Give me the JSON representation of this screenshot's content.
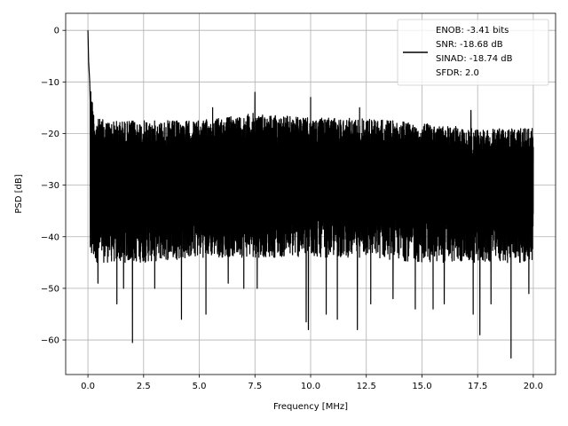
{
  "chart_data": {
    "type": "line",
    "title": "",
    "xlabel": "Frequency [MHz]",
    "ylabel": "PSD [dB]",
    "xlim": [
      -1.0,
      21.0
    ],
    "ylim": [
      -66.7,
      3.3
    ],
    "xticks": [
      0.0,
      2.5,
      5.0,
      7.5,
      10.0,
      12.5,
      15.0,
      17.5,
      20.0
    ],
    "xtick_labels": [
      "0.0",
      "2.5",
      "5.0",
      "7.5",
      "10.0",
      "12.5",
      "15.0",
      "17.5",
      "20.0"
    ],
    "yticks": [
      0,
      -10,
      -20,
      -30,
      -40,
      -50,
      -60
    ],
    "ytick_labels": [
      "0",
      "−10",
      "−20",
      "−30",
      "−40",
      "−50",
      "−60"
    ],
    "grid": true,
    "legend_position": "top-right",
    "legend": {
      "lines": [
        "ENOB: -3.41 bits",
        "SNR: -18.68 dB",
        "SINAD: -18.74 dB",
        "SFDR: 2.0"
      ]
    },
    "series": [
      {
        "color": "#000000",
        "x_range": [
          0.0,
          20.0
        ],
        "noise_floor_band_db": [
          -45,
          -16
        ],
        "upper_envelope": [
          [
            0.05,
            -8
          ],
          [
            0.3,
            -17
          ],
          [
            1.0,
            -17.5
          ],
          [
            3.0,
            -17.5
          ],
          [
            5.0,
            -17.5
          ],
          [
            7.5,
            -16
          ],
          [
            10.0,
            -17
          ],
          [
            12.5,
            -17
          ],
          [
            15.0,
            -18
          ],
          [
            17.5,
            -19
          ],
          [
            20.0,
            -19
          ]
        ],
        "lower_envelope": [
          [
            0.3,
            -45
          ],
          [
            2.5,
            -45
          ],
          [
            5.0,
            -44
          ],
          [
            7.5,
            -44
          ],
          [
            10.0,
            -44
          ],
          [
            12.5,
            -44
          ],
          [
            15.0,
            -45
          ],
          [
            17.5,
            -45
          ],
          [
            20.0,
            -45
          ]
        ],
        "peaks": [
          {
            "x": 0.0,
            "y": 0.0
          },
          {
            "x": 0.03,
            "y": -6
          },
          {
            "x": 0.08,
            "y": -10
          },
          {
            "x": 7.5,
            "y": -12
          },
          {
            "x": 10.0,
            "y": -13
          },
          {
            "x": 5.6,
            "y": -15
          },
          {
            "x": 12.2,
            "y": -15
          },
          {
            "x": 17.2,
            "y": -15.5
          }
        ],
        "dips": [
          {
            "x": 0.45,
            "y": -49
          },
          {
            "x": 1.3,
            "y": -53
          },
          {
            "x": 1.6,
            "y": -50
          },
          {
            "x": 2.0,
            "y": -60.5
          },
          {
            "x": 3.0,
            "y": -50
          },
          {
            "x": 4.2,
            "y": -56
          },
          {
            "x": 5.3,
            "y": -55
          },
          {
            "x": 6.3,
            "y": -49
          },
          {
            "x": 7.0,
            "y": -50
          },
          {
            "x": 7.6,
            "y": -50
          },
          {
            "x": 9.8,
            "y": -56.5
          },
          {
            "x": 9.9,
            "y": -58
          },
          {
            "x": 10.7,
            "y": -55
          },
          {
            "x": 11.2,
            "y": -56
          },
          {
            "x": 12.1,
            "y": -58
          },
          {
            "x": 12.7,
            "y": -53
          },
          {
            "x": 13.7,
            "y": -52
          },
          {
            "x": 14.7,
            "y": -54
          },
          {
            "x": 15.5,
            "y": -54
          },
          {
            "x": 16.0,
            "y": -53
          },
          {
            "x": 17.3,
            "y": -55
          },
          {
            "x": 17.6,
            "y": -59
          },
          {
            "x": 18.1,
            "y": -53
          },
          {
            "x": 19.0,
            "y": -63.5
          },
          {
            "x": 19.8,
            "y": -51
          }
        ]
      }
    ]
  }
}
